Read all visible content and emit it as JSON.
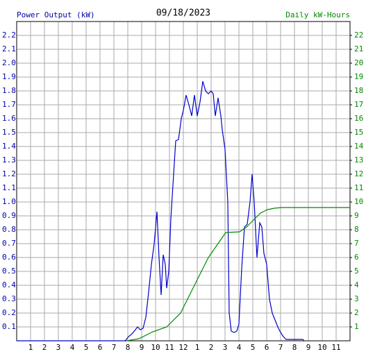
{
  "chart_data": {
    "type": "line",
    "title": "09/18/2023",
    "ylabel": "Power Output (kW)",
    "y2label": "Daily kW-Hours",
    "xlim": [
      0,
      24
    ],
    "xticks": [
      1,
      2,
      3,
      4,
      5,
      6,
      7,
      8,
      9,
      10,
      11,
      12,
      {
        "value": 13,
        "label": "1"
      },
      {
        "value": 14,
        "label": "2"
      },
      {
        "value": 15,
        "label": "3"
      },
      {
        "value": 16,
        "label": "4"
      },
      {
        "value": 17,
        "label": "5"
      },
      {
        "value": 18,
        "label": "6"
      },
      {
        "value": 19,
        "label": "7"
      },
      {
        "value": 20,
        "label": "8"
      },
      {
        "value": 21,
        "label": "9"
      },
      {
        "value": 22,
        "label": "10"
      },
      {
        "value": 23,
        "label": "11"
      }
    ],
    "ylim": [
      0,
      2.3
    ],
    "yticks": [
      0.1,
      0.2,
      0.3,
      0.4,
      0.5,
      0.6,
      0.7,
      0.8,
      0.9,
      {
        "value": 1,
        "label": "1.0"
      },
      1.1,
      1.2,
      1.3,
      1.4,
      1.5,
      1.6,
      1.7,
      1.8,
      1.9,
      {
        "value": 2,
        "label": "2.0"
      },
      2.1,
      2.2
    ],
    "y2lim": [
      0,
      23
    ],
    "y2ticks": [
      1,
      2,
      3,
      4,
      5,
      6,
      7,
      8,
      9,
      10,
      11,
      12,
      13,
      14,
      15,
      16,
      17,
      18,
      19,
      20,
      21,
      22
    ],
    "grid": true,
    "series": [
      {
        "name": "Power Output (kW)",
        "color": "#0000cc",
        "x": [
          0,
          7.8,
          7.9,
          8.05,
          8.3,
          8.55,
          8.7,
          8.9,
          9.1,
          9.3,
          9.5,
          9.7,
          9.9,
          10.1,
          10.25,
          10.4,
          10.55,
          10.7,
          10.8,
          10.95,
          11.1,
          11.3,
          11.45,
          11.65,
          11.85,
          12,
          12.2,
          12.4,
          12.6,
          12.8,
          13,
          13.2,
          13.4,
          13.6,
          13.8,
          14,
          14.15,
          14.3,
          14.5,
          14.7,
          14.8,
          15,
          15.2,
          15.3,
          15.45,
          15.65,
          15.85,
          16,
          16.2,
          16.4,
          16.6,
          16.8,
          16.95,
          17.1,
          17.3,
          17.5,
          17.65,
          17.8,
          18,
          18.2,
          18.4,
          18.6,
          18.8,
          19,
          19.2,
          19.4,
          19.8,
          20.6,
          20.7
        ],
        "values": [
          0,
          0,
          0.01,
          0.03,
          0.05,
          0.08,
          0.1,
          0.08,
          0.09,
          0.17,
          0.35,
          0.55,
          0.7,
          0.93,
          0.6,
          0.33,
          0.62,
          0.55,
          0.38,
          0.5,
          0.88,
          1.2,
          1.44,
          1.45,
          1.6,
          1.66,
          1.77,
          1.7,
          1.62,
          1.77,
          1.62,
          1.72,
          1.87,
          1.8,
          1.78,
          1.8,
          1.78,
          1.62,
          1.75,
          1.62,
          1.52,
          1.38,
          1.0,
          0.2,
          0.07,
          0.06,
          0.07,
          0.12,
          0.52,
          0.82,
          0.84,
          1.0,
          1.2,
          1.0,
          0.6,
          0.85,
          0.82,
          0.63,
          0.55,
          0.3,
          0.2,
          0.15,
          0.1,
          0.06,
          0.03,
          0.01,
          0.01,
          0.01,
          0
        ]
      },
      {
        "name": "Daily kW-Hours",
        "color": "#008800",
        "axis": "y2",
        "x": [
          7.9,
          8.8,
          9.8,
          10.8,
          11.8,
          12.8,
          13.8,
          15.05,
          16.05,
          16.55,
          17.05,
          17.55,
          18.05,
          18.55,
          19.05,
          19.8,
          24
        ],
        "values": [
          0,
          0.15,
          0.65,
          1.0,
          2.0,
          4.0,
          6.0,
          7.8,
          7.85,
          8.2,
          8.7,
          9.2,
          9.45,
          9.55,
          9.6,
          9.6,
          9.6
        ]
      }
    ]
  }
}
